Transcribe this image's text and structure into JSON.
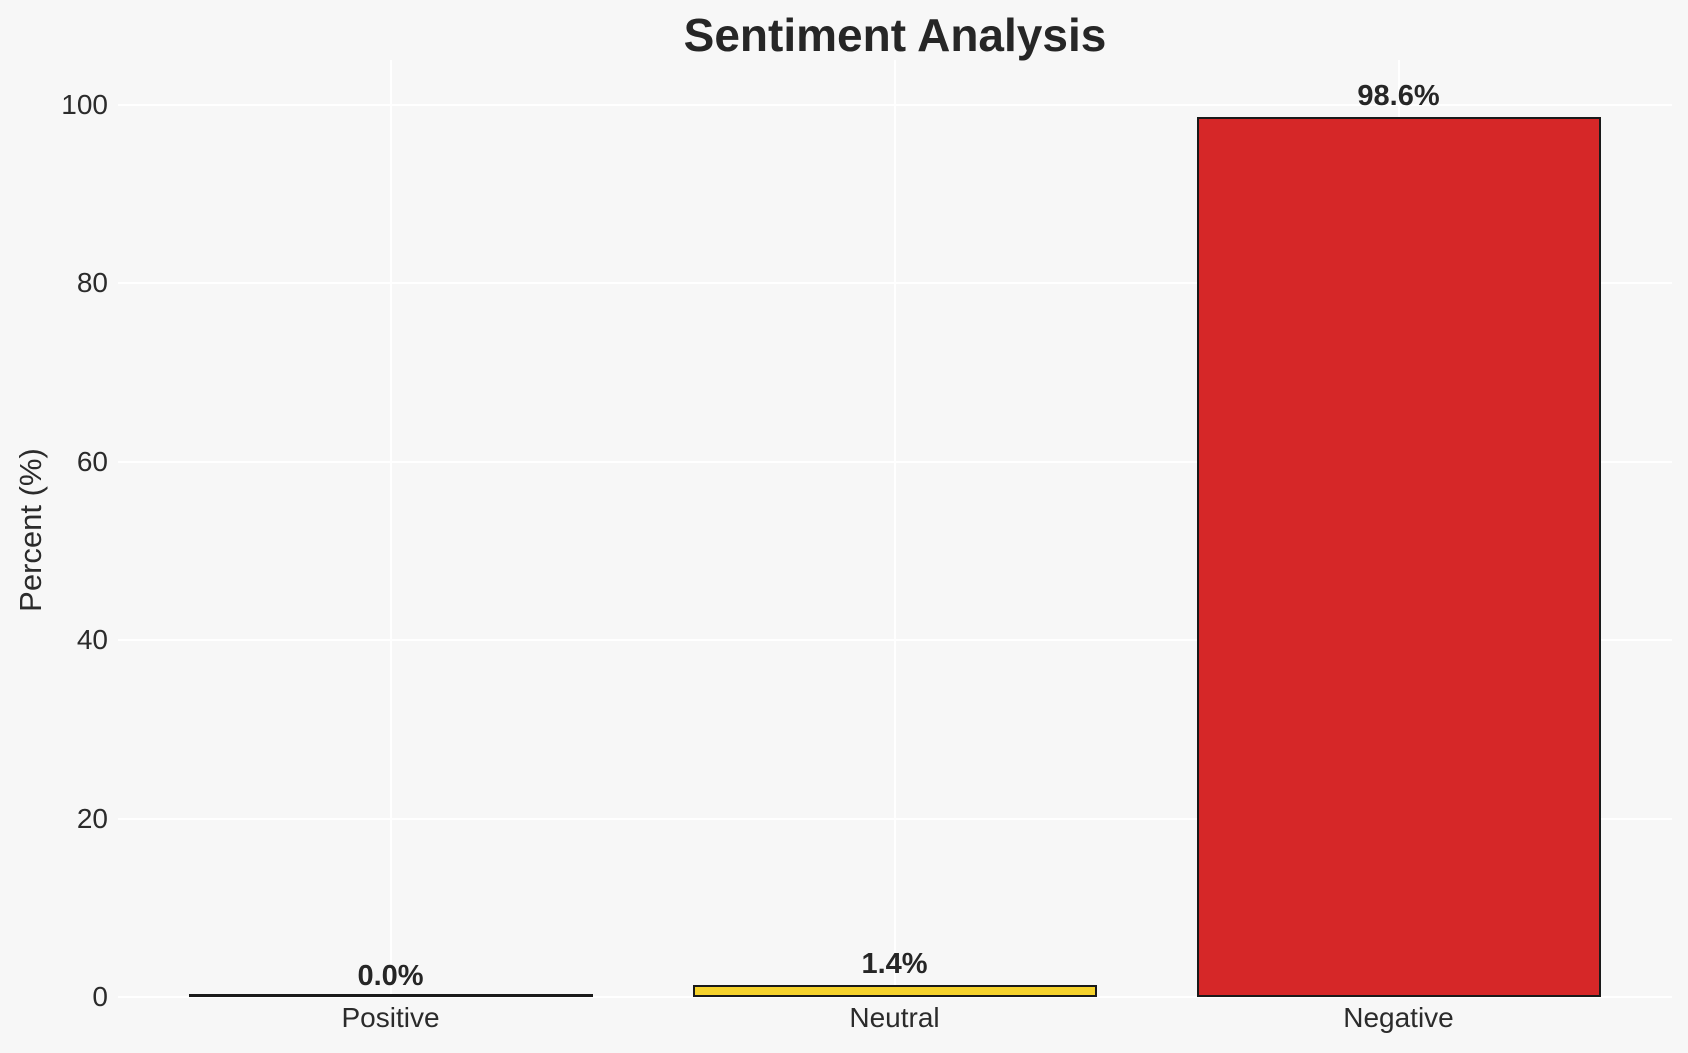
{
  "chart_data": {
    "type": "bar",
    "title": "Sentiment Analysis",
    "xlabel": "",
    "ylabel": "Percent (%)",
    "categories": [
      "Positive",
      "Neutral",
      "Negative"
    ],
    "values": [
      0.0,
      1.4,
      98.6
    ],
    "value_labels": [
      "0.0%",
      "1.4%",
      "98.6%"
    ],
    "bar_colors": [
      null,
      "#f5d22c",
      "#d62728"
    ],
    "bar_edge_color": "#1a1a1a",
    "yticks": [
      0,
      20,
      40,
      60,
      80,
      100
    ],
    "ylim": [
      0,
      105
    ],
    "grid": true,
    "gridline_color": "#ffffff",
    "background_color": "#f7f7f7",
    "text_color": "#2b2b2b",
    "legend": null
  }
}
